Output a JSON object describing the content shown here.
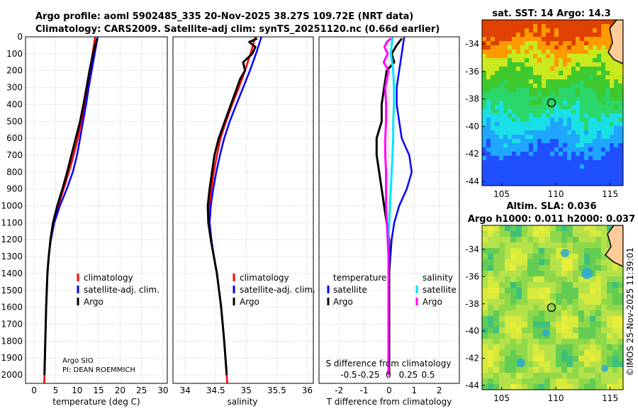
{
  "header": {
    "title_line1": "Argo profile: aoml 5902485_335 20-Nov-2025 38.27S 109.72E (NRT data)",
    "title_line2": "Climatology: CARS2009. Satellite-adj clim: synTS_20251120.nc (0.66d earlier)"
  },
  "colors": {
    "climatology": "#ff0000",
    "satellite": "#0000ff",
    "argo": "#000000",
    "satellite_s": "#00e5ff",
    "argo_s": "#ff00ff"
  },
  "chart_data": [
    {
      "id": "temperature",
      "type": "line",
      "xlabel": "temperature (deg C)",
      "ylabel": "",
      "xlim": [
        -2,
        31
      ],
      "ylim": [
        2050,
        0
      ],
      "xticks": [
        "0",
        "5",
        "10",
        "15",
        "20",
        "25",
        "30"
      ],
      "yticks": [
        "0",
        "100",
        "200",
        "300",
        "400",
        "500",
        "600",
        "700",
        "800",
        "900",
        "1000",
        "1100",
        "1200",
        "1300",
        "1400",
        "1500",
        "1600",
        "1700",
        "1800",
        "1900",
        "2000"
      ],
      "legend": [
        "climatology",
        "satellite-adj. clim.",
        "Argo"
      ],
      "annotation": [
        "Argo SIO",
        "PI: DEAN ROEMMICH"
      ],
      "series": [
        {
          "name": "climatology",
          "depth": [
            0,
            100,
            200,
            300,
            400,
            500,
            600,
            700,
            800,
            900,
            1000,
            1100,
            1200,
            1300,
            1400,
            1600,
            1800,
            2000,
            2050
          ],
          "values": [
            14.2,
            13.6,
            13.0,
            12.4,
            11.8,
            11.0,
            10.2,
            9.2,
            8.1,
            6.9,
            5.6,
            4.5,
            3.8,
            3.4,
            3.1,
            2.8,
            2.6,
            2.4,
            2.35
          ]
        },
        {
          "name": "satellite-adj. clim.",
          "depth": [
            0,
            100,
            200,
            300,
            400,
            500,
            600,
            700,
            800,
            900,
            1000,
            1100,
            1200,
            1300,
            1400,
            1600,
            1800,
            2000
          ],
          "values": [
            14.8,
            14.1,
            13.4,
            12.7,
            12.1,
            11.4,
            10.7,
            10.0,
            9.0,
            7.6,
            6.0,
            4.7,
            3.9,
            3.4,
            3.1,
            2.8,
            2.6,
            2.4
          ]
        },
        {
          "name": "Argo",
          "depth": [
            10,
            50,
            100,
            150,
            200,
            300,
            400,
            500,
            600,
            700,
            800,
            900,
            1000,
            1100,
            1200,
            1300,
            1400,
            1600,
            1800,
            2000
          ],
          "values": [
            14.7,
            14.2,
            13.7,
            13.3,
            12.9,
            12.2,
            11.5,
            10.7,
            9.7,
            8.7,
            7.7,
            6.6,
            5.4,
            4.4,
            3.8,
            3.4,
            3.1,
            2.8,
            2.6,
            2.4
          ]
        }
      ]
    },
    {
      "id": "salinity",
      "type": "line",
      "xlabel": "salinity",
      "ylabel": "",
      "xlim": [
        33.8,
        36.1
      ],
      "ylim": [
        2050,
        0
      ],
      "xticks": [
        "34",
        "34.5",
        "35",
        "35.5",
        "36"
      ],
      "legend": [
        "climatology",
        "satellite-adj. clim.",
        "Argo"
      ],
      "series": [
        {
          "name": "climatology",
          "depth": [
            0,
            100,
            200,
            300,
            400,
            500,
            600,
            700,
            800,
            900,
            1000,
            1100,
            1200,
            1300,
            1400,
            1600,
            1800,
            2000,
            2050
          ],
          "values": [
            35.15,
            35.07,
            34.98,
            34.88,
            34.77,
            34.67,
            34.58,
            34.52,
            34.47,
            34.43,
            34.4,
            34.4,
            34.43,
            34.47,
            34.52,
            34.59,
            34.64,
            34.68,
            34.69
          ]
        },
        {
          "name": "satellite-adj. clim.",
          "depth": [
            0,
            100,
            200,
            300,
            400,
            500,
            600,
            700,
            800,
            900,
            1000,
            1100,
            1200,
            1300,
            1400,
            1600,
            1800,
            2000
          ],
          "values": [
            35.25,
            35.16,
            35.06,
            34.95,
            34.84,
            34.73,
            34.64,
            34.57,
            34.51,
            34.46,
            34.42,
            34.4,
            34.43,
            34.47,
            34.52,
            34.59,
            34.64,
            34.68
          ]
        },
        {
          "name": "Argo",
          "depth": [
            10,
            30,
            60,
            100,
            150,
            200,
            250,
            300,
            400,
            500,
            600,
            700,
            800,
            900,
            1000,
            1100,
            1200,
            1300,
            1400,
            1600,
            1800,
            2000
          ],
          "values": [
            35.18,
            35.05,
            35.15,
            35.1,
            34.95,
            34.98,
            34.9,
            34.85,
            34.75,
            34.65,
            34.55,
            34.48,
            34.44,
            34.4,
            34.37,
            34.38,
            34.42,
            34.47,
            34.52,
            34.59,
            34.64,
            34.68
          ]
        }
      ]
    },
    {
      "id": "difference",
      "type": "line",
      "xlabel": "T difference from climatology",
      "toplabel": "S difference from climatology",
      "xlim": [
        -2.8,
        2.8
      ],
      "ylim": [
        2050,
        0
      ],
      "xticks": [
        "-2",
        "-1",
        "0",
        "1",
        "2"
      ],
      "s_ticks": [
        "-0.5",
        "-0.25",
        "0",
        "0.25",
        "0.5"
      ],
      "legend_t_title": "temperature",
      "legend_s_title": "salinity",
      "legend": [
        "satellite",
        "Argo",
        "satellite",
        "Argo"
      ],
      "series": [
        {
          "name": "T satellite",
          "depth": [
            0,
            100,
            200,
            300,
            400,
            500,
            600,
            700,
            800,
            900,
            1000,
            1100,
            1200,
            1300,
            1400,
            1600,
            1800,
            2000
          ],
          "values": [
            0.6,
            0.5,
            0.4,
            0.3,
            0.3,
            0.4,
            0.5,
            0.8,
            0.9,
            0.7,
            0.4,
            0.2,
            0.1,
            0.05,
            0,
            0,
            0,
            0
          ]
        },
        {
          "name": "T Argo",
          "depth": [
            10,
            50,
            100,
            150,
            200,
            300,
            400,
            500,
            600,
            700,
            800,
            900,
            1000,
            1100,
            1200,
            1300,
            1400,
            1600,
            1800,
            2000
          ],
          "values": [
            0.5,
            0.3,
            0.1,
            0.2,
            -0.1,
            -0.2,
            -0.3,
            -0.3,
            -0.5,
            -0.5,
            -0.4,
            -0.3,
            -0.2,
            -0.1,
            0,
            0,
            0,
            0,
            0,
            0
          ]
        },
        {
          "name": "S satellite",
          "depth": [
            0,
            50,
            100,
            200,
            300,
            400,
            500,
            600,
            700,
            800,
            900,
            1000,
            1100,
            1200,
            1400,
            1600,
            1800,
            2000
          ],
          "values": [
            0.05,
            0.04,
            0.03,
            0.06,
            0.07,
            0.07,
            0.06,
            0.06,
            0.05,
            0.04,
            0.03,
            0.02,
            0.01,
            0,
            0,
            0,
            0,
            0
          ]
        },
        {
          "name": "S Argo",
          "depth": [
            10,
            30,
            60,
            100,
            150,
            200,
            300,
            400,
            500,
            600,
            700,
            800,
            900,
            1000,
            1100,
            1200,
            1300,
            1400,
            1600,
            1800,
            2000
          ],
          "values": [
            0.03,
            -0.02,
            -0.05,
            -0.01,
            -0.06,
            0.0,
            -0.04,
            -0.03,
            -0.03,
            -0.04,
            -0.04,
            -0.03,
            -0.03,
            -0.03,
            -0.02,
            -0.01,
            0,
            0,
            0,
            0,
            0
          ]
        }
      ]
    }
  ],
  "maps": {
    "sst": {
      "title": "sat. SST: 14 Argo: 14.3",
      "xticks": [
        "105",
        "110",
        "115"
      ],
      "yticks": [
        "-34",
        "-36",
        "-38",
        "-40",
        "-42",
        "-44"
      ]
    },
    "sla": {
      "title1": "Altim. SLA: 0.036",
      "title2": "Argo h1000: 0.011 h2000: 0.037",
      "xticks": [
        "105",
        "110",
        "115"
      ],
      "yticks": [
        "-34",
        "-36",
        "-38",
        "-40",
        "-42",
        "-44"
      ]
    }
  },
  "watermark": "©IMOS 25-Nov-2025 11:39:01"
}
